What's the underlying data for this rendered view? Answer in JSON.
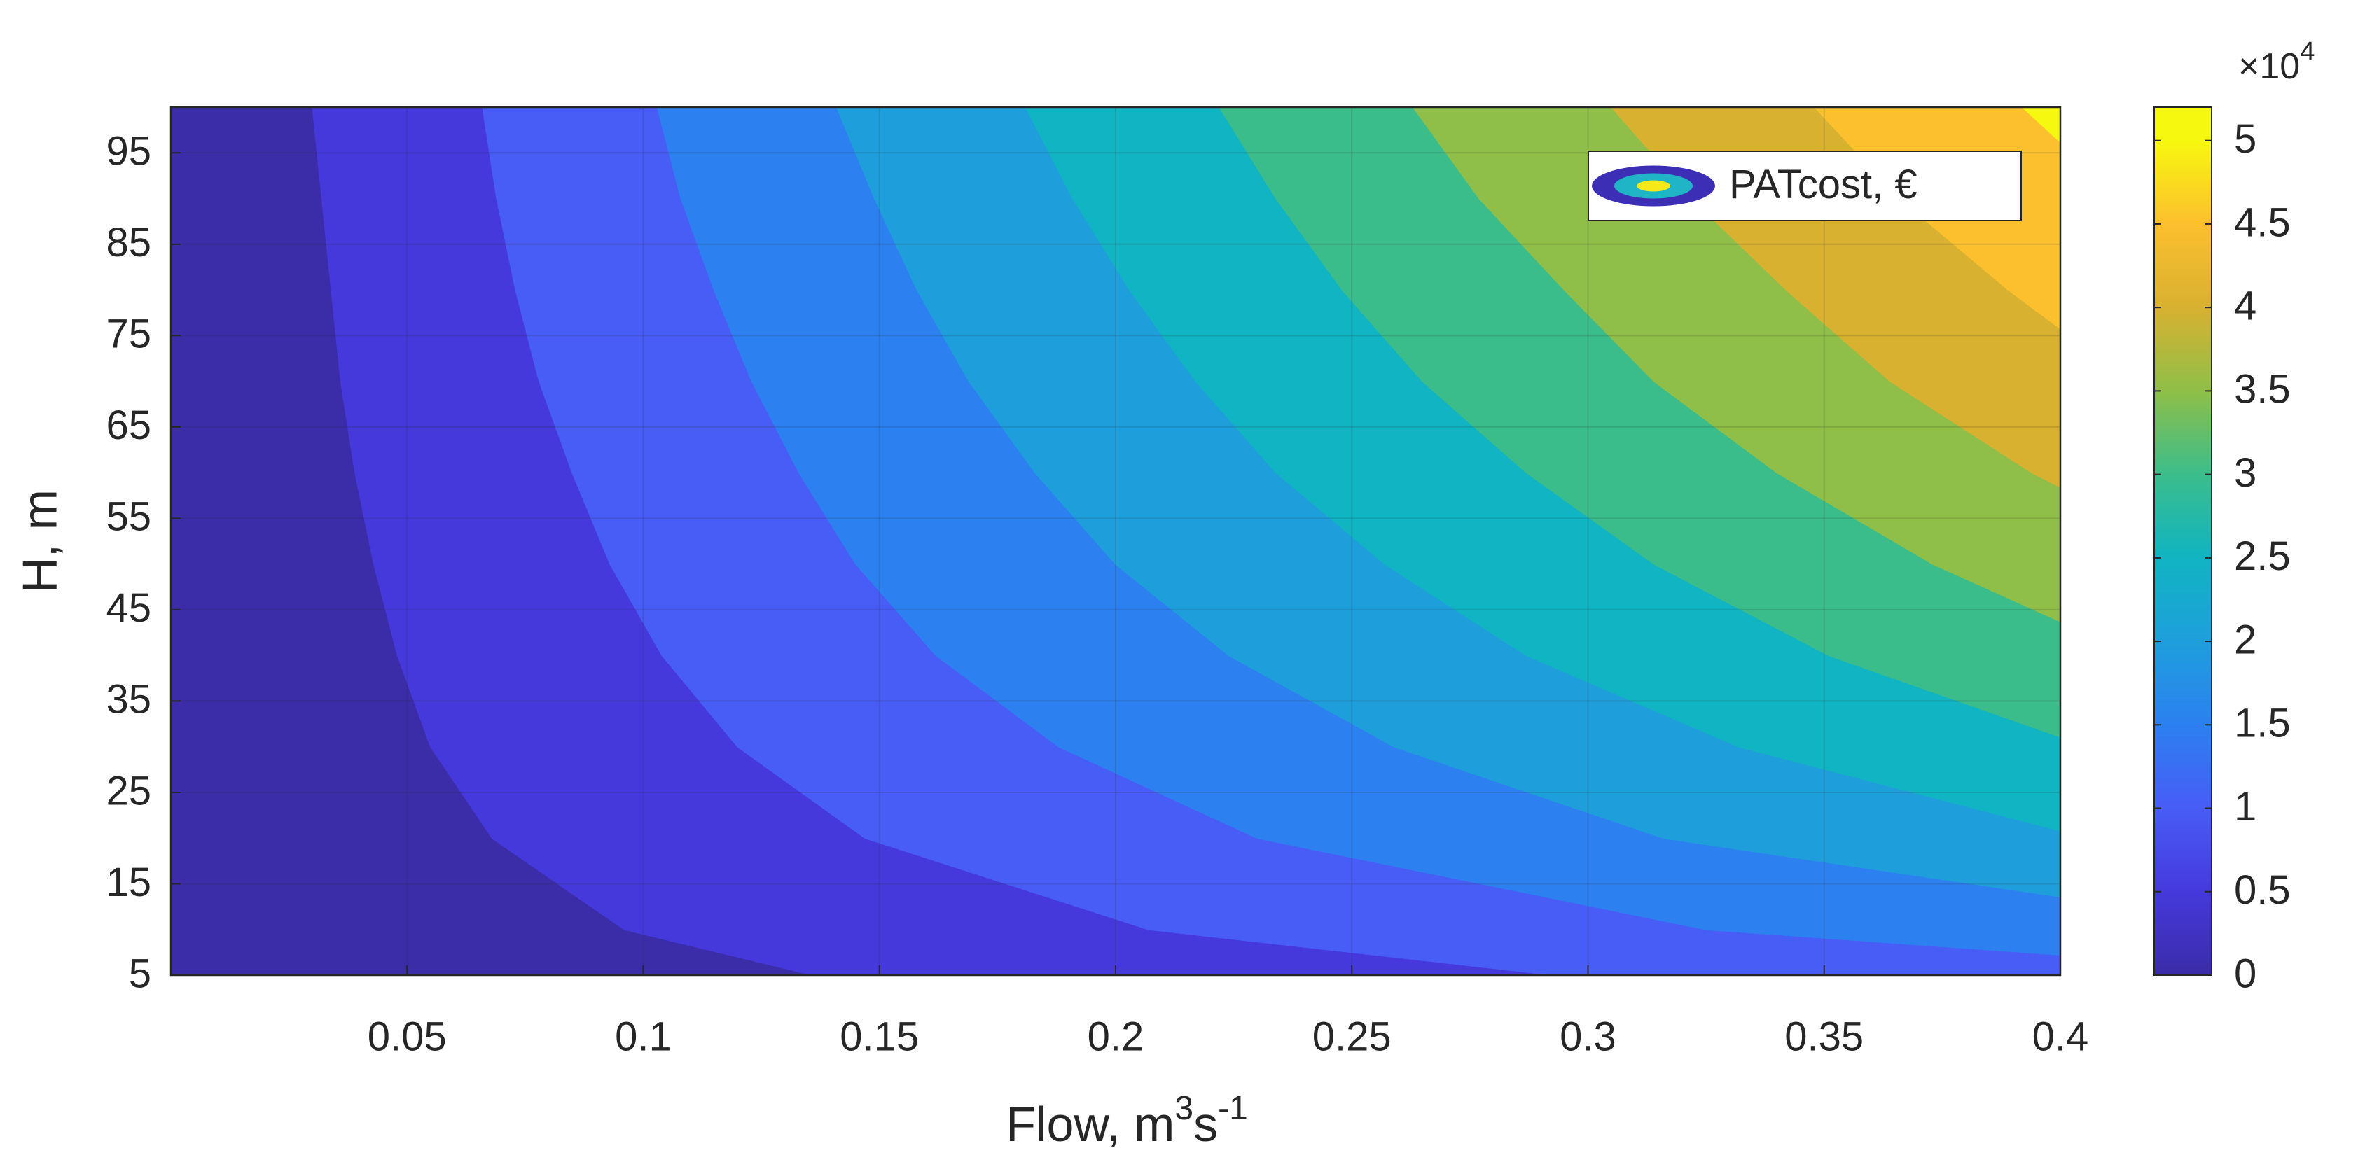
{
  "chart_data": {
    "type": "contour",
    "xlabel_parts": [
      {
        "text": "Flow, m"
      },
      {
        "text": "3",
        "sup": true
      },
      {
        "text": "s"
      },
      {
        "text": "-1",
        "sup": true
      }
    ],
    "ylabel": "H, m",
    "xlim": [
      0,
      0.4
    ],
    "ylim": [
      5,
      100
    ],
    "xticks": [
      0.05,
      0.1,
      0.15,
      0.2,
      0.25,
      0.3,
      0.35,
      0.4
    ],
    "yticks": [
      5,
      15,
      25,
      35,
      45,
      55,
      65,
      75,
      85,
      95
    ],
    "grid": true,
    "legend": "PATcost, €",
    "legend_loc": "northeast",
    "base_color": "#3b2ca8",
    "h": [
      5,
      10,
      20,
      30,
      40,
      50,
      60,
      70,
      80,
      90,
      100
    ],
    "contours": [
      {
        "level": 0.5,
        "color": "#4539dc",
        "q": [
          0.136,
          0.096,
          0.068,
          0.055,
          0.048,
          0.043,
          0.039,
          0.036,
          0.034,
          0.032,
          0.03
        ]
      },
      {
        "level": 1,
        "color": "#485cf6",
        "q": [
          0.293,
          0.207,
          0.147,
          0.12,
          0.104,
          0.093,
          0.085,
          0.078,
          0.073,
          0.069,
          0.066
        ]
      },
      {
        "level": 1.5,
        "color": "#2c80f0",
        "q": [
          0.46,
          0.325,
          0.23,
          0.188,
          0.162,
          0.145,
          0.133,
          0.123,
          0.115,
          0.108,
          0.103
        ]
      },
      {
        "level": 2,
        "color": "#1e9fdc",
        "q": [
          0.633,
          0.447,
          0.316,
          0.259,
          0.224,
          0.2,
          0.183,
          0.169,
          0.158,
          0.149,
          0.141
        ]
      },
      {
        "level": 2.5,
        "color": "#10b4c2",
        "q": [
          0.812,
          0.573,
          0.406,
          0.332,
          0.287,
          0.257,
          0.234,
          0.217,
          0.203,
          0.191,
          0.181
        ]
      },
      {
        "level": 3,
        "color": "#3bbd8b",
        "q": [
          0.993,
          0.702,
          0.497,
          0.406,
          0.351,
          0.314,
          0.287,
          0.265,
          0.248,
          0.234,
          0.222
        ]
      },
      {
        "level": 3.5,
        "color": "#8fbf48",
        "q": [
          1.178,
          0.832,
          0.589,
          0.481,
          0.416,
          0.373,
          0.34,
          0.314,
          0.295,
          0.277,
          0.263
        ]
      },
      {
        "level": 4,
        "color": "#d8b130",
        "q": [
          1.365,
          0.965,
          0.683,
          0.558,
          0.482,
          0.432,
          0.394,
          0.364,
          0.342,
          0.322,
          0.305
        ]
      },
      {
        "level": 4.5,
        "color": "#fcbf2e",
        "q": [
          1.556,
          1.099,
          0.778,
          0.636,
          0.55,
          0.492,
          0.449,
          0.415,
          0.389,
          0.366,
          0.348
        ]
      },
      {
        "level": 5,
        "color": "#f7f80f",
        "q": [
          1.752,
          1.238,
          0.876,
          0.716,
          0.619,
          0.554,
          0.506,
          0.468,
          0.438,
          0.413,
          0.392
        ]
      }
    ],
    "colorbar": {
      "clim": [
        0,
        5.2
      ],
      "ticks": [
        0,
        0.5,
        1,
        1.5,
        2,
        2.5,
        3,
        3.5,
        4,
        4.5,
        5
      ],
      "multiplier": "×10",
      "exponent": 4
    }
  }
}
